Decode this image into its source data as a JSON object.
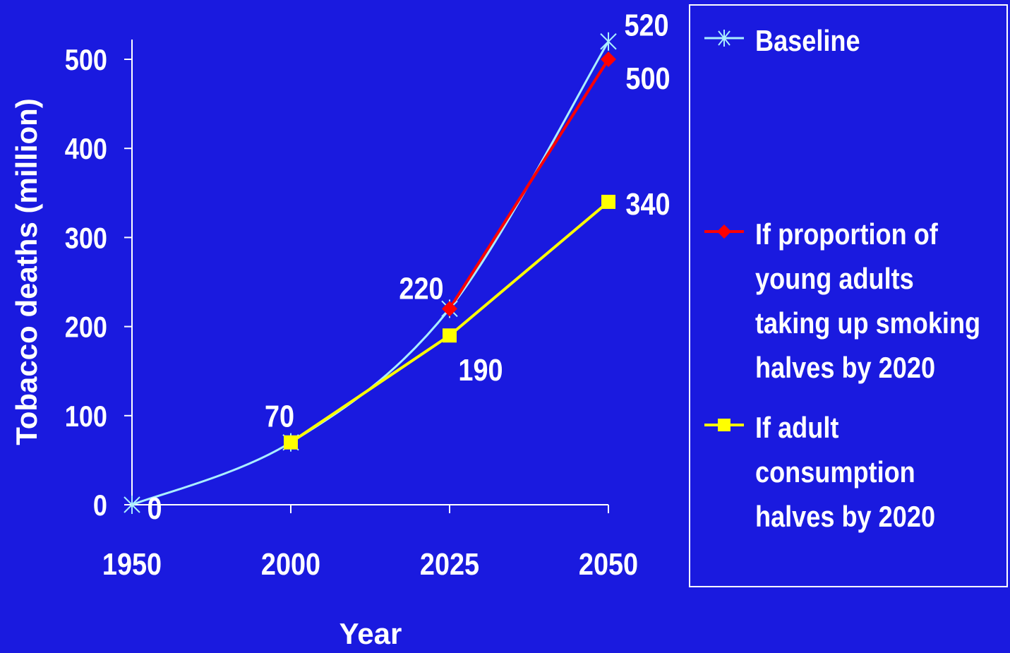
{
  "chart_data": {
    "type": "line",
    "xlabel": "Year",
    "ylabel": "Tobacco deaths (million)",
    "x_ticks": [
      "1950",
      "2000",
      "2025",
      "2050"
    ],
    "y_ticks": [
      "0",
      "100",
      "200",
      "300",
      "400",
      "500"
    ],
    "ylim": [
      0,
      500
    ],
    "series": [
      {
        "name": "Baseline",
        "color": "#aaeeff",
        "marker": "x-cross",
        "points": [
          {
            "x": "1950",
            "y": 0
          },
          {
            "x": "2000",
            "y": 70
          },
          {
            "x": "2025",
            "y": 220
          },
          {
            "x": "2050",
            "y": 520
          }
        ]
      },
      {
        "name": "If proportion of young adults taking up smoking halves by 2020",
        "color": "#ff0000",
        "marker": "diamond",
        "points": [
          {
            "x": "2025",
            "y": 220
          },
          {
            "x": "2050",
            "y": 500
          }
        ]
      },
      {
        "name": "If adult consumption halves by 2020",
        "color": "#ffff00",
        "marker": "square",
        "points": [
          {
            "x": "2000",
            "y": 70
          },
          {
            "x": "2025",
            "y": 190
          },
          {
            "x": "2050",
            "y": 340
          }
        ]
      }
    ],
    "data_labels": [
      {
        "text": "0",
        "x": "1950",
        "y": 0
      },
      {
        "text": "70",
        "x": "2000",
        "y": 70
      },
      {
        "text": "220",
        "x": "2025",
        "y": 220
      },
      {
        "text": "190",
        "x": "2025",
        "y": 190
      },
      {
        "text": "520",
        "x": "2050",
        "y": 520
      },
      {
        "text": "500",
        "x": "2050",
        "y": 500
      },
      {
        "text": "340",
        "x": "2050",
        "y": 340
      }
    ],
    "legend": {
      "position": "right",
      "items": [
        {
          "label": "Baseline",
          "color": "#aaeeff",
          "marker": "x-cross"
        },
        {
          "label": "If proportion of\nyoung adults\ntaking up smoking\nhalves by 2020",
          "color": "#ff0000",
          "marker": "diamond"
        },
        {
          "label": "If adult\nconsumption\nhalves by 2020",
          "color": "#ffff00",
          "marker": "square"
        }
      ]
    },
    "background": "#1a1adf",
    "axis_color": "#ffffff",
    "grid": false
  }
}
